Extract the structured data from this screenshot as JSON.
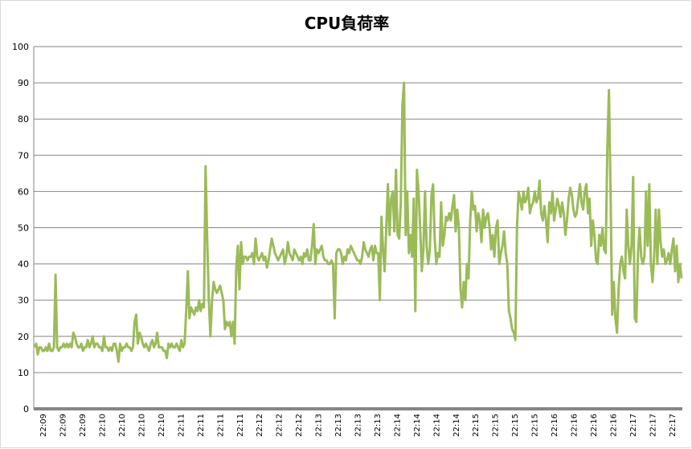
{
  "chart_data": {
    "type": "line",
    "title": "CPU負荷率",
    "xlabel": "",
    "ylabel": "",
    "ylim": [
      0,
      100
    ],
    "yticks": [
      0,
      10,
      20,
      30,
      40,
      50,
      60,
      70,
      80,
      90,
      100
    ],
    "grid": true,
    "legend": "none",
    "x_tick_labels": [
      "22:09",
      "22:09",
      "22:09",
      "22:10",
      "22:10",
      "22:10",
      "22:10",
      "22:11",
      "22:11",
      "22:11",
      "22:11",
      "22:12",
      "22:12",
      "22:12",
      "22:13",
      "22:13",
      "22:13",
      "22:13",
      "22:14",
      "22:14",
      "22:14",
      "22:14",
      "22:15",
      "22:15",
      "22:15",
      "22:15",
      "22:16",
      "22:16",
      "22:16",
      "22:16",
      "22:17",
      "22:17",
      "22:17"
    ],
    "series": [
      {
        "color": "#9bbb59",
        "values": [
          17,
          18,
          15,
          17,
          17,
          16,
          16,
          17,
          16,
          18,
          16,
          16,
          17,
          37,
          17,
          16,
          17,
          17,
          18,
          17,
          18,
          17,
          18,
          17,
          21,
          20,
          18,
          17,
          17,
          18,
          16,
          17,
          17,
          19,
          17,
          18,
          20,
          17,
          18,
          18,
          17,
          17,
          16,
          20,
          17,
          17,
          16,
          17,
          16,
          18,
          18,
          16,
          13,
          18,
          16,
          17,
          17,
          18,
          17,
          17,
          16,
          17,
          24,
          26,
          18,
          21,
          20,
          18,
          17,
          18,
          17,
          16,
          18,
          19,
          17,
          18,
          21,
          17,
          17,
          17,
          16,
          16,
          14,
          18,
          17,
          18,
          17,
          17,
          18,
          17,
          16,
          19,
          17,
          18,
          27,
          38,
          25,
          28,
          27,
          26,
          28,
          27,
          30,
          27,
          29,
          28,
          67,
          47,
          30,
          20,
          30,
          35,
          33,
          32,
          33,
          34,
          32,
          30,
          22,
          24,
          23,
          24,
          20,
          24,
          18,
          39,
          45,
          33,
          46,
          40,
          42,
          42,
          41,
          42,
          42,
          43,
          40,
          47,
          42,
          41,
          42,
          43,
          41,
          42,
          39,
          41,
          44,
          47,
          45,
          43,
          42,
          41,
          42,
          43,
          44,
          40,
          42,
          46,
          43,
          42,
          41,
          44,
          43,
          42,
          41,
          42,
          40,
          43,
          42,
          44,
          41,
          41,
          45,
          51,
          40,
          44,
          43,
          44,
          45,
          42,
          41,
          41,
          40,
          40,
          41,
          40,
          25,
          43,
          44,
          44,
          43,
          40,
          42,
          41,
          44,
          43,
          45,
          44,
          43,
          42,
          41,
          41,
          40,
          42,
          46,
          44,
          43,
          42,
          44,
          45,
          41,
          45,
          43,
          43,
          30,
          53,
          44,
          38,
          50,
          62,
          48,
          58,
          60,
          49,
          66,
          48,
          47,
          57,
          84,
          90,
          48,
          60,
          43,
          48,
          42,
          58,
          27,
          66,
          60,
          50,
          38,
          44,
          60,
          45,
          40,
          44,
          59,
          62,
          47,
          40,
          43,
          42,
          57,
          45,
          48,
          53,
          52,
          54,
          52,
          56,
          59,
          49,
          55,
          50,
          33,
          28,
          35,
          30,
          40,
          36,
          52,
          60,
          55,
          56,
          49,
          54,
          52,
          46,
          55,
          50,
          53,
          54,
          50,
          44,
          48,
          42,
          50,
          52,
          40,
          43,
          45,
          49,
          43,
          40,
          27,
          25,
          22,
          21,
          19,
          50,
          60,
          58,
          55,
          60,
          57,
          58,
          61,
          54,
          56,
          57,
          60,
          57,
          58,
          63,
          54,
          52,
          56,
          52,
          46,
          57,
          54,
          60,
          52,
          55,
          58,
          56,
          53,
          57,
          54,
          48,
          52,
          58,
          61,
          59,
          55,
          53,
          54,
          58,
          62,
          57,
          55,
          60,
          62,
          54,
          58,
          45,
          52,
          48,
          41,
          40,
          48,
          45,
          50,
          44,
          43,
          72,
          88,
          60,
          26,
          35,
          25,
          21,
          33,
          40,
          42,
          38,
          36,
          55,
          45,
          40,
          45,
          64,
          25,
          24,
          43,
          50,
          42,
          40,
          42,
          60,
          45,
          62,
          40,
          35,
          42,
          55,
          40,
          55,
          46,
          42,
          44,
          40,
          41,
          43,
          40,
          44,
          47,
          38,
          45,
          35,
          40,
          36
        ]
      }
    ]
  }
}
